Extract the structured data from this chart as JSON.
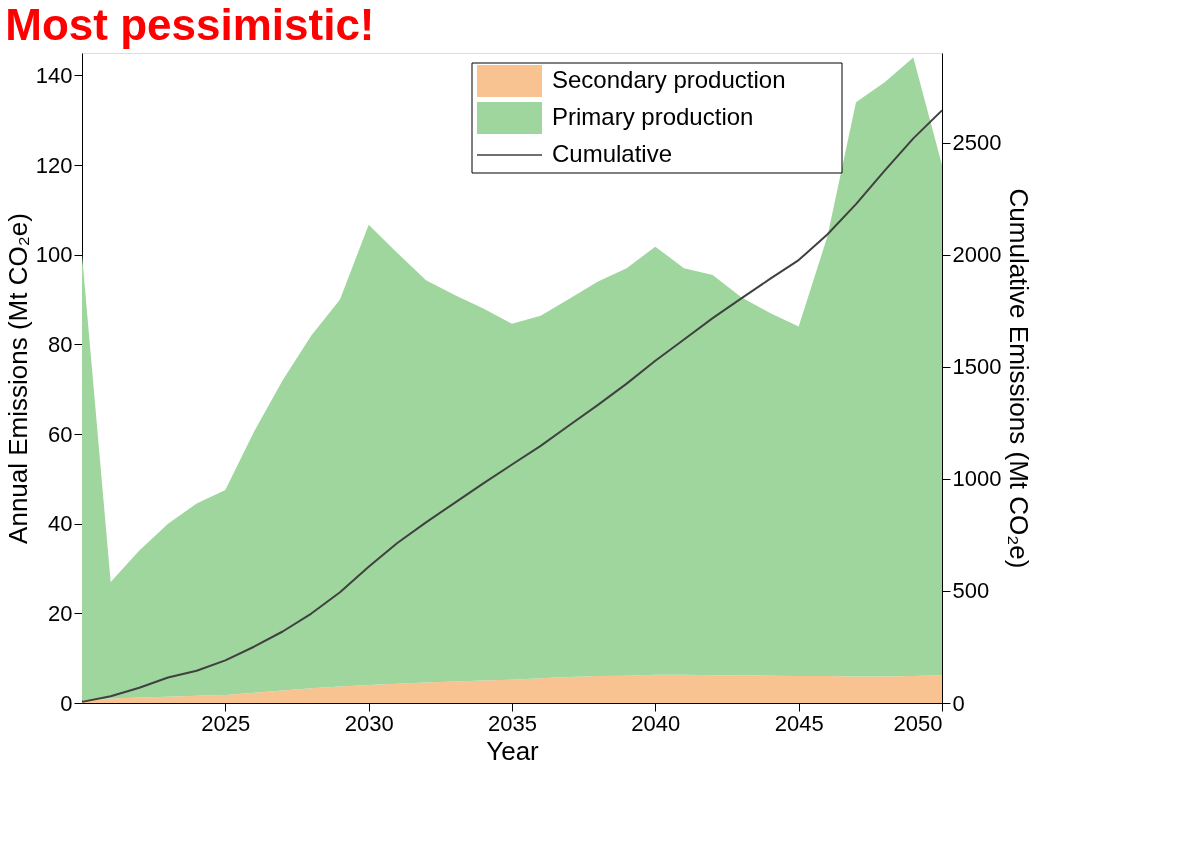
{
  "chart_data": {
    "type": "area",
    "title": "Most pessimistic!",
    "xlabel": "Year",
    "ylabel": "Annual Emissions (Mt CO₂e)",
    "y2label": "Cumulative Emissions (Mt CO₂e)",
    "x": [
      2020,
      2021,
      2022,
      2023,
      2024,
      2025,
      2026,
      2027,
      2028,
      2029,
      2030,
      2031,
      2032,
      2033,
      2034,
      2035,
      2036,
      2037,
      2038,
      2039,
      2040,
      2041,
      2042,
      2043,
      2044,
      2045,
      2046,
      2047,
      2048,
      2049,
      2050
    ],
    "stacked": true,
    "series": [
      {
        "name": "Secondary production",
        "type": "area",
        "color": "#f9c391",
        "values": [
          0.5,
          1,
          1.2,
          1.4,
          1.6,
          1.8,
          2.3,
          2.8,
          3.3,
          3.7,
          4,
          4.3,
          4.6,
          4.8,
          5,
          5.2,
          5.5,
          5.8,
          6,
          6.1,
          6.3,
          6.3,
          6.2,
          6.2,
          6.1,
          6,
          6,
          5.9,
          5.9,
          6,
          6.2
        ]
      },
      {
        "name": "Primary production",
        "type": "area",
        "color": "#9ed69e",
        "values": [
          99.5,
          26,
          32.8,
          38.6,
          42.9,
          45.7,
          58.2,
          69.2,
          78.7,
          86.3,
          102.7,
          96.1,
          89.7,
          86.2,
          83,
          79.4,
          80.9,
          84.4,
          88,
          90.9,
          95.5,
          90.7,
          89.3,
          84.3,
          80.9,
          78,
          98,
          128.1,
          132.6,
          138,
          113.8
        ]
      },
      {
        "name": "Cumulative",
        "type": "line",
        "axis": "y2",
        "color": "#404040",
        "values": [
          5,
          30,
          68,
          114,
          144,
          190,
          251,
          319,
          399,
          494,
          608,
          714,
          806,
          893,
          980,
          1064,
          1147,
          1239,
          1330,
          1425,
          1527,
          1622,
          1717,
          1805,
          1892,
          1976,
          2090,
          2226,
          2375,
          2519,
          2644
        ]
      }
    ],
    "xlim": [
      2020,
      2050
    ],
    "xticks": [
      2025,
      2030,
      2035,
      2040,
      2045,
      2050
    ],
    "ylim": [
      0,
      145
    ],
    "yticks": [
      0,
      20,
      40,
      60,
      80,
      100,
      120,
      140
    ],
    "y2lim": [
      0,
      2900
    ],
    "y2ticks": [
      0,
      500,
      1000,
      1500,
      2000,
      2500
    ],
    "legend": "top right",
    "grid": false,
    "line_style": "solid"
  }
}
